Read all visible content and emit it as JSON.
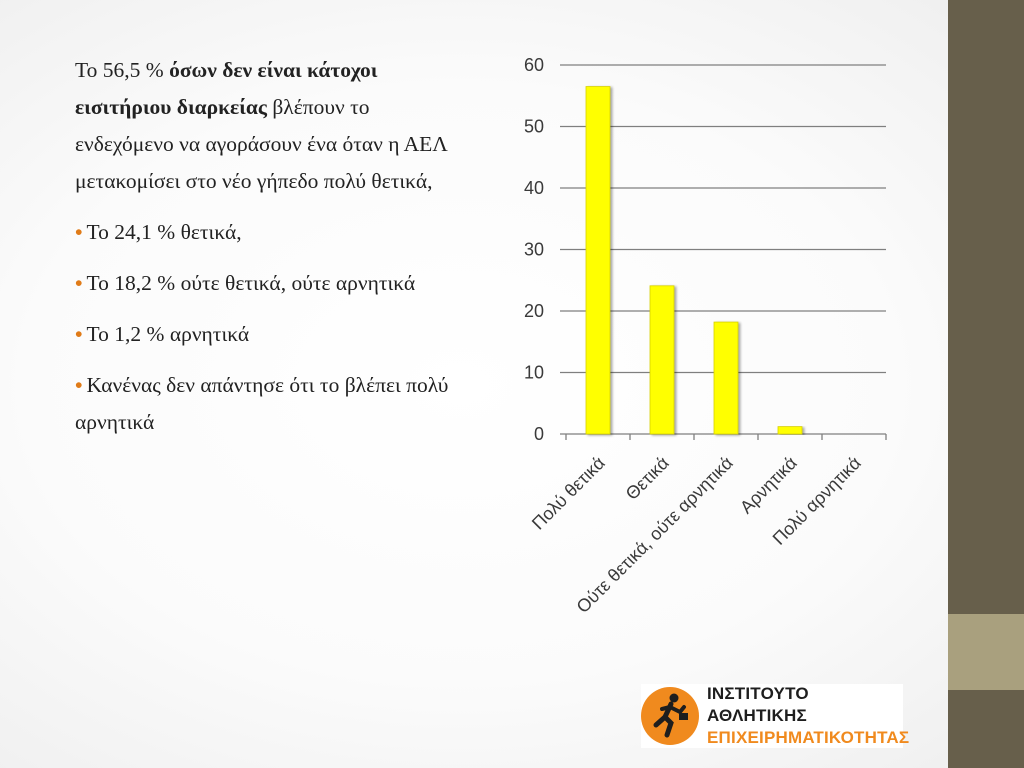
{
  "text": {
    "p1_pre": "Το 56,5 % ",
    "p1_bold": "όσων δεν είναι κάτοχοι εισιτήριου διαρκείας",
    "p1_post": " βλέπουν το ενδεχόμενο να αγοράσουν ένα όταν η ΑΕΛ μετακομίσει στο νέο γήπεδο πολύ θετικά,",
    "bullet_char": "•",
    "bullets": [
      "Το 24,1 % θετικά,",
      "Το 18,2 % ούτε θετικά, ούτε αρνητικά",
      "Το 1,2 % αρνητικά",
      "Κανένας δεν απάντησε ότι το βλέπει πολύ αρνητικά"
    ]
  },
  "colors": {
    "bar": "#ffff00",
    "bar_stroke": "#d8d200",
    "grid": "#7f7f7f",
    "bullet": "#e07b18",
    "side_bar": "#675f4b",
    "side_accent": "#a9a07e",
    "logo_orange": "#f08a1e"
  },
  "chart_data": {
    "type": "bar",
    "categories": [
      "Πολύ θετικά",
      "Θετικά",
      "Ούτε θετικά, ούτε αρνητικά",
      "Αρνητικά",
      "Πολύ αρνητικά"
    ],
    "values": [
      56.5,
      24.1,
      18.2,
      1.2,
      0
    ],
    "ylim": [
      0,
      60
    ],
    "yticks": [
      0,
      10,
      20,
      30,
      40,
      50,
      60
    ],
    "grid": true,
    "title": "",
    "xlabel": "",
    "ylabel": ""
  },
  "logo": {
    "line1": "ΙΝΣΤΙΤΟΥΤΟ ΑΘΛΗΤΙΚΗΣ",
    "line2": "ΕΠΙΧΕΙΡΗΜΑΤΙΚΟΤΗΤΑΣ",
    "icon": "runner-icon"
  }
}
